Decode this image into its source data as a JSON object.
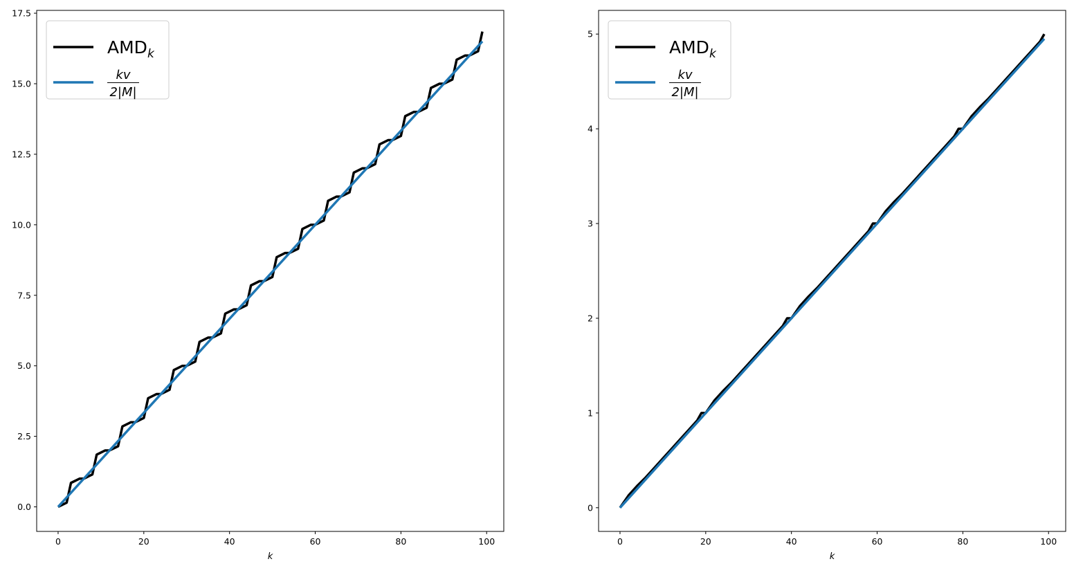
{
  "chart_data": [
    {
      "type": "line",
      "title": "",
      "xlabel": "k",
      "ylabel": "",
      "xlim": [
        -5,
        104
      ],
      "ylim": [
        -0.87,
        17.6
      ],
      "xticks": [
        0,
        20,
        40,
        60,
        80,
        100
      ],
      "yticks": [
        0,
        2.5,
        5,
        7.5,
        10,
        12.5,
        15,
        17.5
      ],
      "xtick_labels": [
        "0",
        "20",
        "40",
        "60",
        "80",
        "100"
      ],
      "ytick_labels": [
        "0.0",
        "2.5",
        "5.0",
        "7.5",
        "10.0",
        "12.5",
        "15.0",
        "17.5"
      ],
      "legend": {
        "placement": "top-left",
        "amd_main": "AMD",
        "amd_sub": "k",
        "frac_num": "kv",
        "frac_den": "2|M|"
      },
      "grid": false,
      "step_period": 6,
      "series": [
        {
          "name": "AMD_k",
          "color": "#000000",
          "kind": "step",
          "x": [
            0,
            2,
            3,
            5,
            6,
            8,
            9,
            11,
            12,
            14,
            15,
            17,
            18,
            20,
            21,
            23,
            24,
            26,
            27,
            29,
            30,
            32,
            33,
            35,
            36,
            38,
            39,
            41,
            42,
            44,
            45,
            47,
            48,
            50,
            51,
            53,
            54,
            56,
            57,
            59,
            60,
            62,
            63,
            65,
            66,
            68,
            69,
            71,
            72,
            74,
            75,
            77,
            78,
            80,
            81,
            83,
            84,
            86,
            87,
            89,
            90,
            92,
            93,
            95,
            96,
            98,
            99
          ],
          "y": [
            0,
            0.15,
            0.85,
            1.0,
            1.0,
            1.15,
            1.85,
            2.0,
            2.0,
            2.15,
            2.85,
            3.0,
            3.0,
            3.15,
            3.85,
            4.0,
            4.0,
            4.15,
            4.85,
            5.0,
            5.0,
            5.15,
            5.85,
            6.0,
            6.0,
            6.15,
            6.85,
            7.0,
            7.0,
            7.15,
            7.85,
            8.0,
            8.0,
            8.15,
            8.85,
            9.0,
            9.0,
            9.15,
            9.85,
            10.0,
            10.0,
            10.15,
            10.85,
            11.0,
            11.0,
            11.15,
            11.85,
            12.0,
            12.0,
            12.15,
            12.85,
            13.0,
            13.0,
            13.15,
            13.85,
            14.0,
            14.0,
            14.15,
            14.85,
            15.0,
            15.0,
            15.15,
            15.85,
            16.0,
            16.0,
            16.15,
            16.85
          ]
        },
        {
          "name": "kv / 2|M|",
          "color": "#1f77b4",
          "kind": "linear",
          "x": [
            0,
            99
          ],
          "y": [
            0,
            16.5
          ]
        }
      ]
    },
    {
      "type": "line",
      "title": "",
      "xlabel": "k",
      "ylabel": "",
      "xlim": [
        -5,
        104
      ],
      "ylim": [
        -0.25,
        5.25
      ],
      "xticks": [
        0,
        20,
        40,
        60,
        80,
        100
      ],
      "yticks": [
        0,
        1,
        2,
        3,
        4,
        5
      ],
      "xtick_labels": [
        "0",
        "20",
        "40",
        "60",
        "80",
        "100"
      ],
      "ytick_labels": [
        "0",
        "1",
        "2",
        "3",
        "4",
        "5"
      ],
      "legend": {
        "placement": "top-left",
        "amd_main": "AMD",
        "amd_sub": "k",
        "frac_num": "kv",
        "frac_den": "2|M|"
      },
      "grid": false,
      "step_period": 20,
      "series": [
        {
          "name": "AMD_k",
          "color": "#000000",
          "kind": "step",
          "x": [
            0,
            2,
            4,
            6,
            8,
            10,
            12,
            14,
            16,
            18,
            19,
            20,
            22,
            24,
            26,
            28,
            30,
            32,
            34,
            36,
            38,
            39,
            40,
            42,
            44,
            46,
            48,
            50,
            52,
            54,
            56,
            58,
            59,
            60,
            62,
            64,
            66,
            68,
            70,
            72,
            74,
            76,
            78,
            79,
            80,
            82,
            84,
            86,
            88,
            90,
            92,
            94,
            96,
            98,
            99
          ],
          "y": [
            0,
            0.13,
            0.23,
            0.32,
            0.42,
            0.52,
            0.62,
            0.72,
            0.82,
            0.92,
            1.0,
            1.0,
            1.13,
            1.23,
            1.32,
            1.42,
            1.52,
            1.62,
            1.72,
            1.82,
            1.92,
            2.0,
            2.0,
            2.13,
            2.23,
            2.32,
            2.42,
            2.52,
            2.62,
            2.72,
            2.82,
            2.92,
            3.0,
            3.0,
            3.13,
            3.23,
            3.32,
            3.42,
            3.52,
            3.62,
            3.72,
            3.82,
            3.92,
            4.0,
            4.0,
            4.13,
            4.23,
            4.32,
            4.42,
            4.52,
            4.62,
            4.72,
            4.82,
            4.92,
            5.0
          ]
        },
        {
          "name": "kv / 2|M|",
          "color": "#1f77b4",
          "kind": "linear",
          "x": [
            0,
            99
          ],
          "y": [
            0,
            4.95
          ]
        }
      ]
    }
  ]
}
